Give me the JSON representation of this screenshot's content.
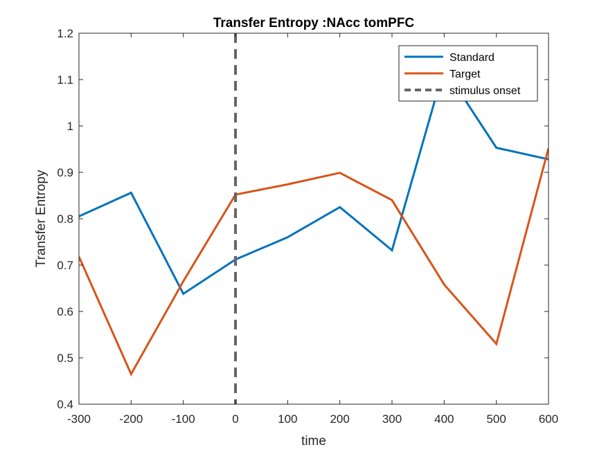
{
  "chart_data": {
    "type": "line",
    "title": "Transfer Entropy :NAcc tomPFC",
    "xlabel": "time",
    "ylabel": "Transfer Entropy",
    "xlim": [
      -300,
      600
    ],
    "ylim": [
      0.4,
      1.2
    ],
    "x_ticks": [
      -300,
      -200,
      -100,
      0,
      100,
      200,
      300,
      400,
      500,
      600
    ],
    "x_tick_labels": [
      "-300",
      "-200",
      "-100",
      "0",
      "100",
      "200",
      "300",
      "400",
      "500",
      "600"
    ],
    "y_ticks": [
      0.4,
      0.5,
      0.6,
      0.7,
      0.8,
      0.9,
      1.0,
      1.1,
      1.2
    ],
    "y_tick_labels": [
      "0.4",
      "0.5",
      "0.6",
      "0.7",
      "0.8",
      "0.9",
      "1",
      "1.1",
      "1.2"
    ],
    "grid": false,
    "legend_position": "top-right",
    "x": [
      -300,
      -200,
      -100,
      0,
      100,
      200,
      300,
      400,
      500,
      600
    ],
    "series": [
      {
        "name": "Standard",
        "color": "#0072BD",
        "values": [
          0.805,
          0.856,
          0.638,
          0.712,
          0.76,
          0.825,
          0.732,
          1.125,
          0.953,
          0.928
        ]
      },
      {
        "name": "Target",
        "color": "#D95319",
        "values": [
          0.718,
          0.465,
          0.665,
          0.852,
          0.874,
          0.899,
          0.84,
          0.658,
          0.53,
          0.952
        ]
      }
    ],
    "vertical_lines": [
      {
        "name": "stimulus onset",
        "x": 0,
        "color": "#666666",
        "style": "dashed"
      }
    ]
  }
}
